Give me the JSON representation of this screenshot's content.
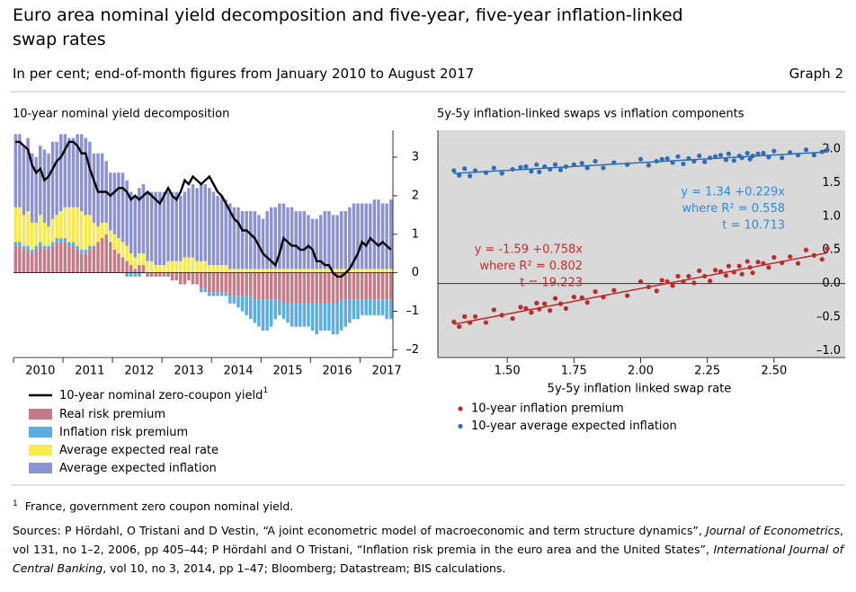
{
  "title": "Euro area nominal yield decomposition and five-year, five-year inflation-linked swap rates",
  "subtitle": "In per cent; end-of-month figures from January 2010 to August 2017",
  "graph_label": "Graph 2",
  "footnote": {
    "mark": "1",
    "text": "France, government zero coupon nominal yield."
  },
  "sources": [
    "Sources: P Hördahl, O Tristani and D Vestin, “A joint econometric model of macroeconomic and term structure dynamics”, ",
    "Journal of Econometrics",
    ", vol 131, no 1–2, 2006, pp 405–44; P Hördahl and O Tristani, “Inflation risk premia in the euro area and the United States”, ",
    "International Journal of Central Banking",
    ", vol 10, no 3, 2014, pp 1–47; Bloomberg; Datastream; BIS calculations."
  ],
  "chart_data": [
    {
      "type": "bar",
      "stacked": true,
      "title": "10-year nominal yield decomposition",
      "categories": [
        null,
        null,
        null,
        null,
        null,
        null,
        "2010",
        null,
        null,
        null,
        null,
        null,
        null,
        null,
        null,
        null,
        null,
        null,
        "2011",
        null,
        null,
        null,
        null,
        null,
        null,
        null,
        null,
        null,
        null,
        null,
        "2012",
        null,
        null,
        null,
        null,
        null,
        null,
        null,
        null,
        null,
        null,
        null,
        "2013",
        null,
        null,
        null,
        null,
        null,
        null,
        null,
        null,
        null,
        null,
        null,
        "2014",
        null,
        null,
        null,
        null,
        null,
        null,
        null,
        null,
        null,
        null,
        null,
        "2015",
        null,
        null,
        null,
        null,
        null,
        null,
        null,
        null,
        null,
        null,
        null,
        "2016",
        null,
        null,
        null,
        null,
        null,
        null,
        null,
        null,
        null,
        null,
        null,
        "2017",
        null
      ],
      "ylim": [
        -2.2,
        3.7
      ],
      "yticks": [
        3,
        2,
        1,
        0,
        {
          "value": -1,
          "label": "–1"
        },
        {
          "value": -2,
          "label": "–2"
        }
      ],
      "series": [
        {
          "name": "10-year nominal zero-coupon yield",
          "note": "1",
          "type": "line",
          "color": "#000000",
          "values": [
            3.4,
            3.4,
            3.3,
            3.2,
            2.8,
            2.6,
            2.7,
            2.4,
            2.5,
            2.7,
            2.9,
            3.0,
            3.2,
            3.4,
            3.4,
            3.3,
            3.1,
            3.1,
            2.7,
            2.4,
            2.1,
            2.1,
            2.1,
            2.0,
            2.1,
            2.2,
            2.2,
            2.1,
            1.9,
            2.0,
            1.9,
            2.0,
            2.1,
            2.0,
            1.9,
            1.8,
            2.0,
            2.2,
            2.0,
            1.9,
            2.1,
            2.4,
            2.3,
            2.5,
            2.4,
            2.3,
            2.4,
            2.5,
            2.3,
            2.1,
            2.0,
            1.8,
            1.6,
            1.4,
            1.3,
            1.1,
            1.1,
            1.0,
            0.9,
            0.7,
            0.5,
            0.4,
            0.3,
            0.2,
            0.5,
            0.9,
            0.8,
            0.7,
            0.7,
            0.6,
            0.6,
            0.7,
            0.6,
            0.3,
            0.3,
            0.2,
            0.2,
            0.0,
            -0.1,
            -0.1,
            0.0,
            0.1,
            0.3,
            0.5,
            0.8,
            0.7,
            0.9,
            0.8,
            0.7,
            0.8,
            0.7,
            0.6
          ]
        },
        {
          "name": "Real risk premium",
          "color": "#c57b87",
          "values": [
            0.7,
            0.7,
            0.6,
            0.6,
            0.5,
            0.6,
            0.7,
            0.6,
            0.6,
            0.7,
            0.8,
            0.8,
            0.8,
            0.7,
            0.7,
            0.6,
            0.5,
            0.5,
            0.6,
            0.7,
            0.8,
            0.9,
            1.0,
            0.8,
            0.6,
            0.5,
            0.4,
            0.3,
            0.2,
            0.1,
            0.2,
            0.2,
            -0.1,
            -0.1,
            -0.1,
            -0.1,
            -0.1,
            -0.1,
            -0.2,
            -0.2,
            -0.3,
            -0.3,
            -0.2,
            -0.3,
            -0.3,
            -0.4,
            -0.4,
            -0.5,
            -0.5,
            -0.5,
            -0.5,
            -0.5,
            -0.6,
            -0.6,
            -0.6,
            -0.6,
            -0.6,
            -0.6,
            -0.7,
            -0.7,
            -0.7,
            -0.7,
            -0.7,
            -0.7,
            -0.7,
            -0.8,
            -0.8,
            -0.8,
            -0.8,
            -0.8,
            -0.8,
            -0.8,
            -0.8,
            -0.8,
            -0.8,
            -0.8,
            -0.8,
            -0.8,
            -0.8,
            -0.7,
            -0.7,
            -0.7,
            -0.7,
            -0.7,
            -0.7,
            -0.7,
            -0.7,
            -0.7,
            -0.7,
            -0.7,
            -0.7,
            -0.7
          ]
        },
        {
          "name": "Inflation risk premium",
          "color": "#5badE2",
          "values": [
            0.1,
            0.1,
            0.1,
            0.1,
            0.1,
            0.1,
            0.1,
            0.1,
            0.1,
            0.1,
            0.1,
            0.1,
            0.1,
            0.1,
            0.1,
            0.1,
            0.1,
            0.1,
            0.1,
            0.0,
            0.0,
            0.0,
            0.0,
            0.0,
            0.0,
            0.0,
            0.0,
            -0.1,
            -0.1,
            -0.1,
            -0.1,
            0.0,
            0.0,
            0.0,
            0.0,
            0.0,
            0.0,
            0.0,
            0.0,
            0.0,
            0.0,
            0.0,
            0.0,
            0.0,
            0.0,
            -0.1,
            -0.1,
            -0.1,
            -0.1,
            -0.1,
            -0.1,
            -0.1,
            -0.2,
            -0.2,
            -0.3,
            -0.4,
            -0.5,
            -0.6,
            -0.6,
            -0.7,
            -0.8,
            -0.8,
            -0.7,
            -0.5,
            -0.4,
            -0.4,
            -0.5,
            -0.6,
            -0.6,
            -0.6,
            -0.6,
            -0.6,
            -0.7,
            -0.8,
            -0.7,
            -0.7,
            -0.7,
            -0.8,
            -0.8,
            -0.8,
            -0.7,
            -0.6,
            -0.5,
            -0.5,
            -0.4,
            -0.4,
            -0.4,
            -0.4,
            -0.4,
            -0.4,
            -0.5,
            -0.5
          ]
        },
        {
          "name": "Average expected real rate",
          "color": "#f7ea4f",
          "values": [
            0.9,
            0.9,
            0.8,
            0.9,
            0.7,
            0.6,
            0.7,
            0.6,
            0.5,
            0.6,
            0.6,
            0.7,
            0.8,
            0.9,
            0.9,
            1.0,
            1.0,
            0.9,
            0.8,
            0.6,
            0.4,
            0.4,
            0.3,
            0.3,
            0.4,
            0.4,
            0.4,
            0.4,
            0.3,
            0.3,
            0.3,
            0.3,
            0.3,
            0.3,
            0.2,
            0.2,
            0.2,
            0.3,
            0.3,
            0.3,
            0.3,
            0.4,
            0.4,
            0.4,
            0.3,
            0.3,
            0.3,
            0.2,
            0.2,
            0.2,
            0.2,
            0.2,
            0.1,
            0.1,
            0.1,
            0.1,
            0.1,
            0.1,
            0.1,
            0.1,
            0.1,
            0.1,
            0.1,
            0.1,
            0.1,
            0.1,
            0.1,
            0.1,
            0.1,
            0.1,
            0.1,
            0.1,
            0.1,
            0.1,
            0.1,
            0.1,
            0.1,
            0.1,
            0.1,
            0.1,
            0.1,
            0.1,
            0.1,
            0.1,
            0.1,
            0.1,
            0.1,
            0.1,
            0.1,
            0.1,
            0.1,
            0.1
          ]
        },
        {
          "name": "Average expected inflation",
          "color": "#8d92d1",
          "values": [
            1.9,
            1.9,
            1.8,
            1.9,
            1.8,
            1.7,
            1.8,
            1.9,
            1.9,
            2.0,
            1.9,
            2.0,
            1.9,
            1.8,
            1.8,
            1.9,
            2.0,
            2.0,
            1.9,
            1.8,
            1.9,
            1.8,
            1.6,
            1.5,
            1.6,
            1.7,
            1.8,
            1.7,
            1.6,
            1.6,
            1.7,
            1.8,
            1.8,
            1.8,
            1.9,
            1.9,
            1.9,
            1.8,
            1.8,
            1.8,
            1.7,
            1.7,
            1.8,
            1.9,
            1.9,
            2.0,
            2.0,
            2.0,
            1.9,
            1.8,
            1.8,
            1.7,
            1.7,
            1.6,
            1.6,
            1.5,
            1.5,
            1.5,
            1.5,
            1.4,
            1.3,
            1.5,
            1.6,
            1.6,
            1.7,
            1.7,
            1.6,
            1.6,
            1.5,
            1.5,
            1.5,
            1.4,
            1.3,
            1.3,
            1.4,
            1.5,
            1.5,
            1.4,
            1.4,
            1.5,
            1.5,
            1.6,
            1.7,
            1.7,
            1.7,
            1.7,
            1.7,
            1.8,
            1.8,
            1.7,
            1.7,
            1.8
          ]
        }
      ]
    },
    {
      "type": "scatter",
      "title": "5y-5y inflation-linked swaps vs inflation components",
      "x_label": "5y-5y inflation linked swap rate",
      "xlim": [
        1.24,
        2.75
      ],
      "xticks": [
        {
          "value": 1.5,
          "label": "1.50"
        },
        {
          "value": 1.75,
          "label": "1.75"
        },
        {
          "value": 2.0,
          "label": "2.00"
        },
        {
          "value": 2.25,
          "label": "2.25"
        },
        {
          "value": 2.5,
          "label": "2.50"
        }
      ],
      "ylim": [
        -1.1,
        2.28
      ],
      "yticks": [
        {
          "value": 2.0,
          "label": "2.0"
        },
        {
          "value": 1.5,
          "label": "1.5"
        },
        {
          "value": 1.0,
          "label": "1.0"
        },
        {
          "value": 0.5,
          "label": "0.5"
        },
        {
          "value": 0.0,
          "label": "0.0"
        },
        {
          "value": -0.5,
          "label": "–0.5"
        },
        {
          "value": -1.0,
          "label": "–1.0"
        }
      ],
      "x": [
        1.3,
        1.32,
        1.34,
        1.36,
        1.38,
        1.42,
        1.45,
        1.48,
        1.52,
        1.55,
        1.57,
        1.59,
        1.61,
        1.62,
        1.64,
        1.66,
        1.68,
        1.7,
        1.72,
        1.75,
        1.78,
        1.8,
        1.83,
        1.86,
        1.9,
        1.95,
        2.0,
        2.03,
        2.06,
        2.08,
        2.1,
        2.12,
        2.14,
        2.16,
        2.18,
        2.2,
        2.22,
        2.24,
        2.26,
        2.28,
        2.3,
        2.32,
        2.33,
        2.35,
        2.37,
        2.38,
        2.4,
        2.41,
        2.42,
        2.44,
        2.46,
        2.48,
        2.5,
        2.53,
        2.56,
        2.59,
        2.62,
        2.65,
        2.68,
        2.7
      ],
      "series": [
        {
          "name": "10-year inflation premium",
          "color": "#bf2b2b",
          "trend": {
            "intercept": -1.59,
            "slope": 0.758
          },
          "annotation": [
            "y = -1.59 +0.758x",
            "where R² = 0.802",
            "t = 19.223"
          ],
          "values": [
            -0.57,
            -0.64,
            -0.49,
            -0.58,
            -0.49,
            -0.58,
            -0.39,
            -0.47,
            -0.52,
            -0.35,
            -0.37,
            -0.43,
            -0.29,
            -0.38,
            -0.3,
            -0.4,
            -0.22,
            -0.3,
            -0.37,
            -0.2,
            -0.21,
            -0.28,
            -0.12,
            -0.2,
            -0.1,
            -0.18,
            0.03,
            -0.05,
            -0.11,
            0.05,
            0.03,
            -0.03,
            0.11,
            0.03,
            0.11,
            0.01,
            0.19,
            0.11,
            0.04,
            0.2,
            0.18,
            0.12,
            0.26,
            0.17,
            0.26,
            0.14,
            0.33,
            0.24,
            0.16,
            0.32,
            0.3,
            0.24,
            0.39,
            0.31,
            0.4,
            0.3,
            0.5,
            0.42,
            0.36,
            0.52
          ]
        },
        {
          "name": "10-year average expected inflation",
          "color": "#2f6db5",
          "trend": {
            "intercept": 1.34,
            "slope": 0.229
          },
          "annotation": [
            "y = 1.34 +0.229x",
            "where R² = 0.558",
            "t = 10.713"
          ],
          "values": [
            1.68,
            1.61,
            1.71,
            1.6,
            1.68,
            1.65,
            1.72,
            1.64,
            1.7,
            1.73,
            1.74,
            1.67,
            1.77,
            1.66,
            1.74,
            1.7,
            1.77,
            1.69,
            1.74,
            1.77,
            1.79,
            1.72,
            1.82,
            1.72,
            1.8,
            1.77,
            1.85,
            1.76,
            1.82,
            1.85,
            1.86,
            1.8,
            1.89,
            1.78,
            1.86,
            1.82,
            1.9,
            1.81,
            1.87,
            1.89,
            1.91,
            1.84,
            1.93,
            1.83,
            1.9,
            1.87,
            1.94,
            1.85,
            1.9,
            1.93,
            1.94,
            1.88,
            1.97,
            1.87,
            1.95,
            1.91,
            1.99,
            1.91,
            1.96,
            1.99
          ]
        }
      ]
    }
  ]
}
